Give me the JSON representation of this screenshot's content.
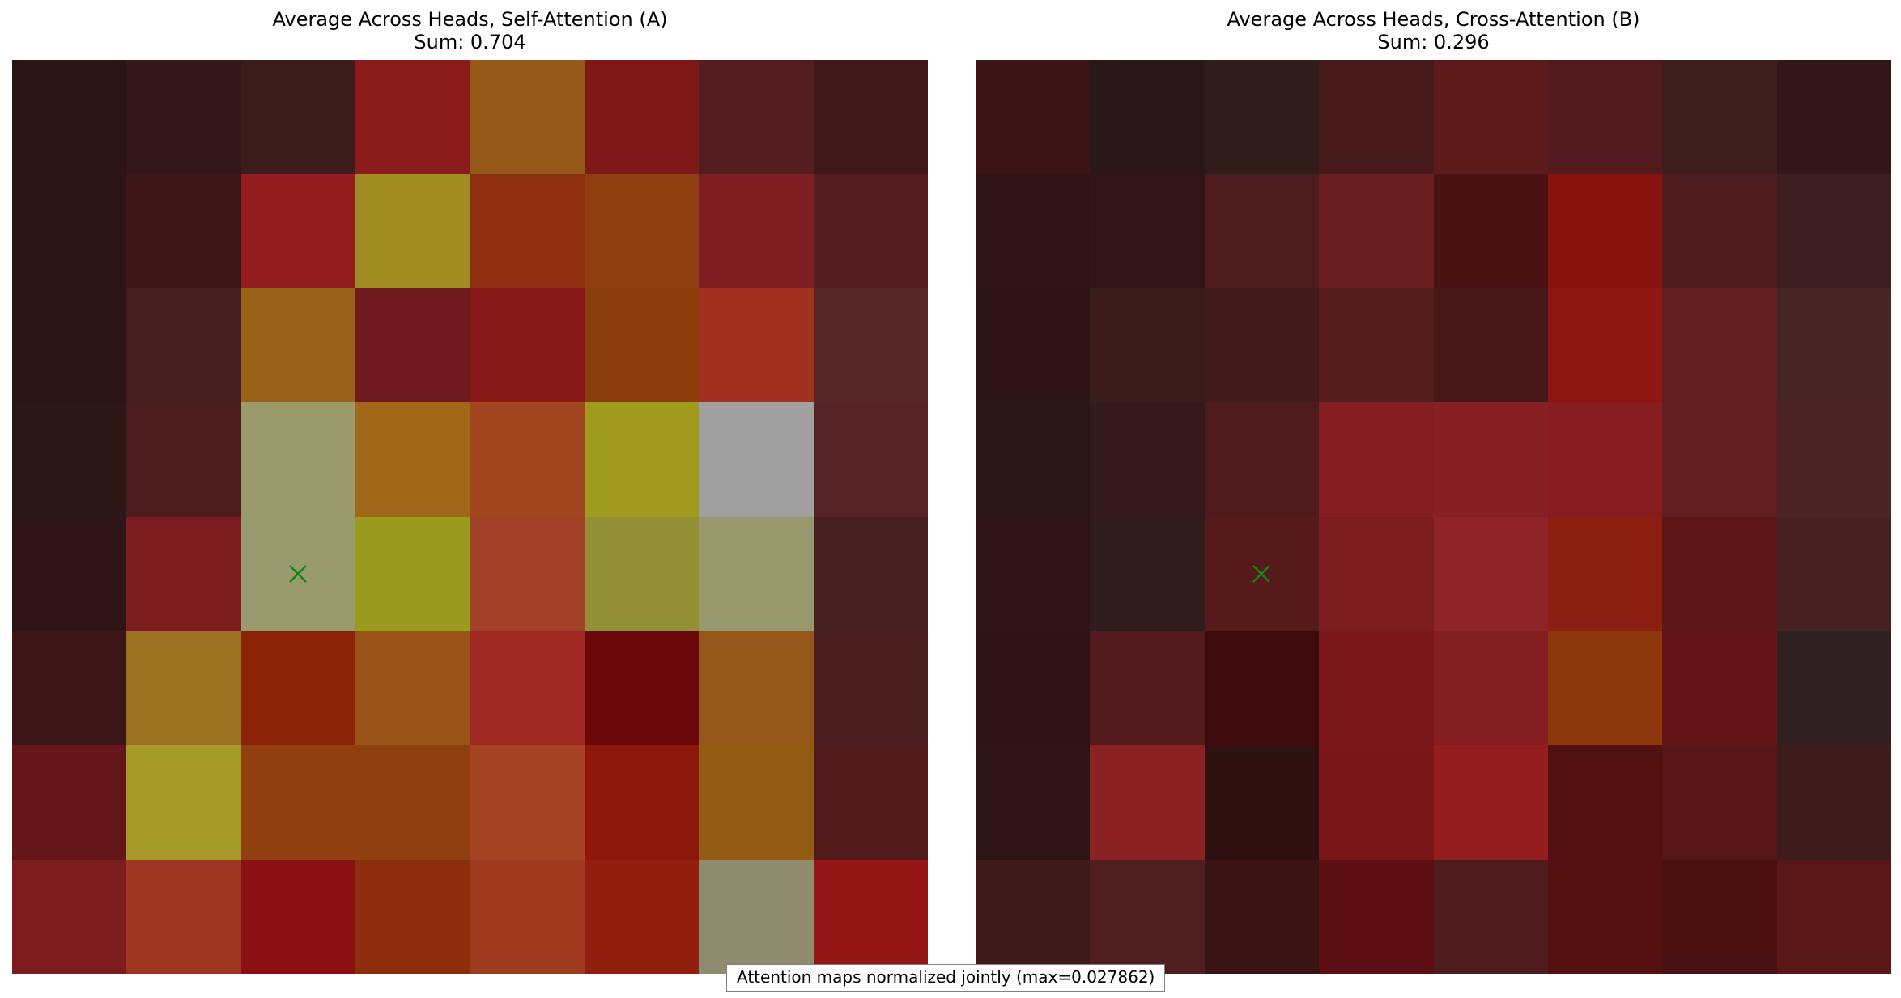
{
  "chart_data": [
    {
      "type": "heatmap",
      "title": "Average Across Heads, Self-Attention (A)",
      "subtitle": "Sum: 0.704",
      "rows": 8,
      "cols": 8,
      "marker": {
        "row": 4,
        "col": 2,
        "symbol": "x",
        "color": "#118811"
      },
      "cell_colors": [
        [
          "#2b1414",
          "#341718",
          "#3d1d1c",
          "#8b1a1a",
          "#955818",
          "#7e1819",
          "#541e20",
          "#411819"
        ],
        [
          "#2b1414",
          "#3e1718",
          "#921c1e",
          "#a08b20",
          "#8f2d10",
          "#8f3e10",
          "#7d1e21",
          "#541e20"
        ],
        [
          "#2b1414",
          "#441d1e",
          "#9a6218",
          "#6e1a1e",
          "#881818",
          "#8c3d0c",
          "#a03020",
          "#572628"
        ],
        [
          "#2a1716",
          "#4c1b1d",
          "#9a9a6c",
          "#a06818",
          "#a24620",
          "#9f9b1c",
          "#a0a0a0",
          "#562426"
        ],
        [
          "#2e1617",
          "#7b1c1f",
          "#999a6d",
          "#999b1d",
          "#a34128",
          "#928f34",
          "#97986e",
          "#472122"
        ],
        [
          "#3c1617",
          "#9b7020",
          "#8b2408",
          "#9b5418",
          "#a02822",
          "#6b0809",
          "#96581a",
          "#4a1f20"
        ],
        [
          "#641618",
          "#a59a28",
          "#90400e",
          "#90400e",
          "#a44422",
          "#8c180c",
          "#925c12",
          "#521a1b"
        ],
        [
          "#7c1c1d",
          "#9e3621",
          "#8b1011",
          "#8e2d0b",
          "#9e3a1e",
          "#921e10",
          "#8e8c6c",
          "#931516"
        ]
      ]
    },
    {
      "type": "heatmap",
      "title": "Average Across Heads, Cross-Attention (B)",
      "subtitle": "Sum: 0.296",
      "rows": 8,
      "cols": 8,
      "marker": {
        "row": 4,
        "col": 2,
        "symbol": "x",
        "color": "#118811"
      },
      "cell_colors": [
        [
          "#3c1415",
          "#2a1718",
          "#311c1c",
          "#461a1b",
          "#5c1a1b",
          "#521a1c",
          "#3c1e1e",
          "#321718"
        ],
        [
          "#301415",
          "#321617",
          "#4c1b1d",
          "#6a1e20",
          "#4a1213",
          "#88120f",
          "#4e1c1d",
          "#3d1e20"
        ],
        [
          "#2c1414",
          "#3c1b1c",
          "#421a1b",
          "#541c1d",
          "#481819",
          "#8e1610",
          "#621e20",
          "#472426"
        ],
        [
          "#2a1615",
          "#341a1b",
          "#4e1a1c",
          "#841e20",
          "#862022",
          "#861c1f",
          "#621e20",
          "#4c2425"
        ],
        [
          "#301415",
          "#2f1c1c",
          "#561a1b",
          "#7a1c1d",
          "#8e2427",
          "#8c1e12",
          "#5e1619",
          "#472122"
        ],
        [
          "#2f1314",
          "#521a1c",
          "#3e0a0b",
          "#7a1819",
          "#821e20",
          "#8b370b",
          "#621416",
          "#302020"
        ],
        [
          "#2f1415",
          "#8a2224",
          "#2f1011",
          "#7a1617",
          "#951d1d",
          "#521010",
          "#561516",
          "#3e1c1c"
        ],
        [
          "#3e1a1b",
          "#4e1e20",
          "#3a1414",
          "#5c0e10",
          "#4e1a1b",
          "#540f10",
          "#4a1011",
          "#581617"
        ]
      ]
    }
  ],
  "footnote": "Attention maps normalized jointly (max=0.027862)"
}
